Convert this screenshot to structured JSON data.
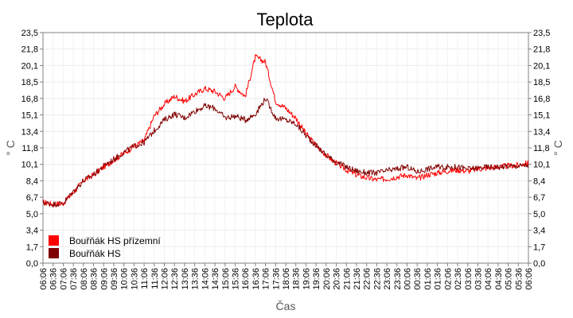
{
  "chart_data": {
    "type": "line",
    "title": "Teplota",
    "xlabel": "Čas",
    "ylabel": "° C",
    "ylabel_right": "° C",
    "ylim": [
      0,
      23.5
    ],
    "yticks": [
      "0,0",
      "1,7",
      "3,4",
      "5,0",
      "6,7",
      "8,4",
      "10,1",
      "11,8",
      "13,4",
      "15,1",
      "16,8",
      "18,5",
      "20,1",
      "21,8",
      "23,5"
    ],
    "x": [
      "06:06",
      "06:36",
      "07:06",
      "07:36",
      "08:06",
      "08:36",
      "09:06",
      "09:36",
      "10:06",
      "10:36",
      "11:06",
      "11:36",
      "12:06",
      "12:36",
      "13:06",
      "13:36",
      "14:06",
      "14:36",
      "15:06",
      "15:36",
      "16:06",
      "16:36",
      "17:06",
      "17:36",
      "18:06",
      "18:36",
      "19:06",
      "19:36",
      "20:06",
      "20:36",
      "21:06",
      "21:36",
      "22:06",
      "22:36",
      "23:06",
      "23:36",
      "00:06",
      "00:36",
      "01:06",
      "01:36",
      "02:06",
      "02:36",
      "03:06",
      "03:36",
      "04:06",
      "04:36",
      "05:06",
      "05:36",
      "06:06"
    ],
    "grid": true,
    "legend_position": "bottom-left",
    "series": [
      {
        "name": "Bouřňák HS přízemní",
        "color": "#ff0000",
        "values": [
          6.2,
          6.0,
          6.1,
          7.2,
          8.4,
          9.0,
          9.8,
          10.5,
          11.2,
          11.9,
          12.5,
          15.0,
          16.2,
          17.0,
          16.5,
          17.2,
          17.8,
          17.5,
          16.8,
          18.0,
          17.0,
          21.0,
          20.5,
          16.5,
          15.8,
          14.8,
          13.2,
          12.0,
          11.0,
          10.2,
          9.5,
          9.0,
          8.7,
          8.5,
          8.6,
          8.8,
          9.0,
          8.6,
          9.0,
          9.2,
          9.4,
          9.5,
          9.4,
          9.6,
          9.7,
          9.8,
          9.9,
          10.0,
          10.2
        ]
      },
      {
        "name": "Bouřňák HS",
        "color": "#800000",
        "values": [
          6.2,
          6.0,
          6.1,
          7.3,
          8.4,
          9.0,
          9.9,
          10.6,
          11.3,
          11.9,
          12.3,
          13.5,
          14.6,
          15.2,
          14.8,
          15.5,
          16.0,
          15.8,
          14.8,
          15.0,
          14.6,
          15.2,
          16.8,
          14.8,
          14.6,
          14.2,
          13.0,
          12.0,
          11.0,
          10.3,
          9.8,
          9.4,
          9.2,
          9.2,
          9.4,
          9.6,
          9.8,
          9.3,
          9.6,
          9.8,
          9.8,
          9.8,
          9.6,
          9.7,
          9.8,
          9.8,
          9.9,
          9.9,
          10.0
        ]
      }
    ]
  }
}
